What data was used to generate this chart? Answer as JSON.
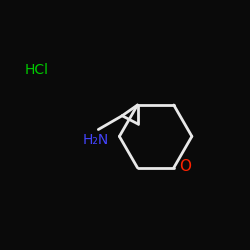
{
  "background_color": "#0a0a0a",
  "bond_color": "#e8e8e8",
  "hcl_color": "#00cc00",
  "nh2_color": "#4444ff",
  "o_color": "#ff2200",
  "hcl_text": "HCl",
  "nh2_text": "H₂N",
  "o_text": "O",
  "figsize": [
    2.5,
    2.5
  ],
  "dpi": 100
}
